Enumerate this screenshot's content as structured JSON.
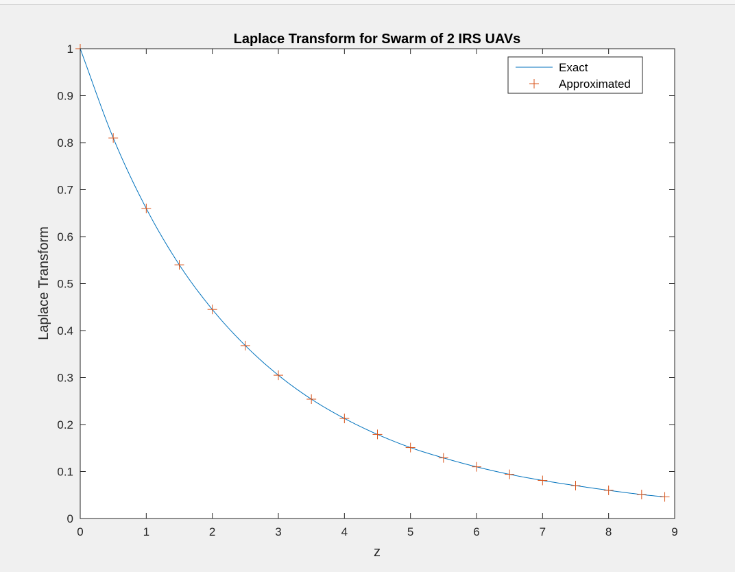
{
  "chart_data": {
    "type": "line",
    "title": "Laplace Transform for Swarm of 2 IRS UAVs",
    "xlabel": "z",
    "ylabel": "Laplace Transform",
    "xlim": [
      0,
      9
    ],
    "ylim": [
      0,
      1
    ],
    "xticks": [
      "0",
      "1",
      "2",
      "3",
      "4",
      "5",
      "6",
      "7",
      "8",
      "9"
    ],
    "yticks": [
      "0",
      "0.1",
      "0.2",
      "0.3",
      "0.4",
      "0.5",
      "0.6",
      "0.7",
      "0.8",
      "0.9",
      "1"
    ],
    "grid": false,
    "legend_position": "top-right",
    "series": [
      {
        "name": "Exact",
        "style": "line",
        "color": "#0072BD",
        "x": [
          0,
          0.5,
          1,
          1.5,
          2,
          2.5,
          3,
          3.5,
          4,
          4.5,
          5,
          5.5,
          6,
          6.5,
          7,
          7.5,
          8,
          8.5,
          8.85
        ],
        "y": [
          1.0,
          0.81,
          0.66,
          0.54,
          0.445,
          0.368,
          0.305,
          0.254,
          0.213,
          0.179,
          0.151,
          0.129,
          0.11,
          0.094,
          0.081,
          0.07,
          0.06,
          0.051,
          0.046
        ]
      },
      {
        "name": "Approximated",
        "style": "markers",
        "marker": "+",
        "color": "#D95319",
        "x": [
          0,
          0.5,
          1,
          1.5,
          2,
          2.5,
          3,
          3.5,
          4,
          4.5,
          5,
          5.5,
          6,
          6.5,
          7,
          7.5,
          8,
          8.5,
          8.85
        ],
        "y": [
          1.0,
          0.81,
          0.66,
          0.54,
          0.445,
          0.368,
          0.305,
          0.254,
          0.213,
          0.179,
          0.151,
          0.129,
          0.11,
          0.094,
          0.081,
          0.07,
          0.06,
          0.051,
          0.046
        ]
      }
    ]
  }
}
